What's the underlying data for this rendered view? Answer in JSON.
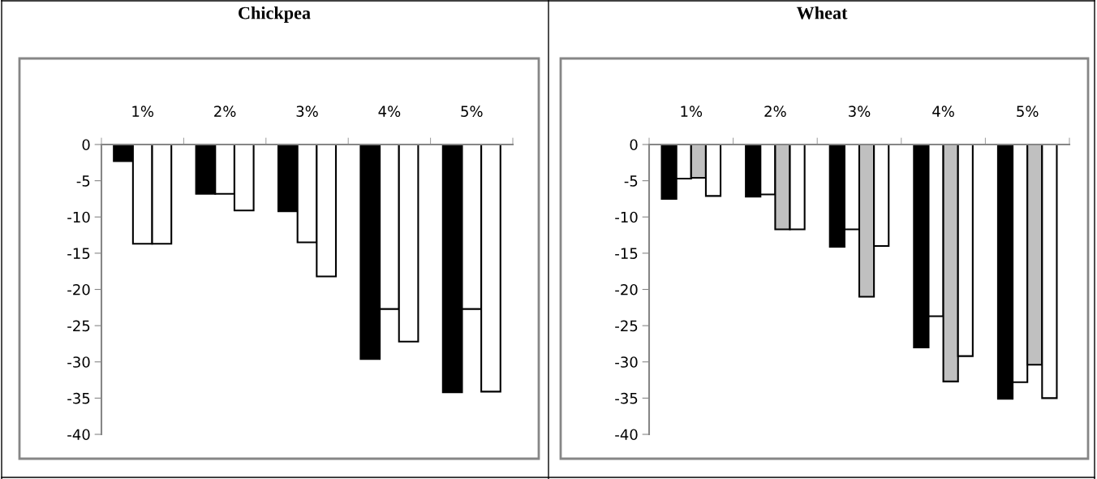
{
  "chart_data": [
    {
      "type": "bar",
      "title": "Chickpea",
      "categories": [
        "1%",
        "2%",
        "3%",
        "4%",
        "5%"
      ],
      "ylim": [
        -40,
        0
      ],
      "yticks": [
        0,
        -5,
        -10,
        -15,
        -20,
        -25,
        -30,
        -35,
        -40
      ],
      "grid": false,
      "legend": false,
      "series": [
        {
          "color": "#000000",
          "values": [
            -2.3,
            -6.8,
            -9.2,
            -29.6,
            -34.2
          ]
        },
        {
          "color": "#ffffff",
          "values": [
            -13.7,
            -6.8,
            -13.5,
            -22.7,
            -22.7
          ]
        },
        {
          "color": "#ffffff",
          "values": [
            -13.7,
            -9.1,
            -18.2,
            -27.2,
            -34.1
          ]
        }
      ]
    },
    {
      "type": "bar",
      "title": "Wheat",
      "categories": [
        "1%",
        "2%",
        "3%",
        "4%",
        "5%"
      ],
      "ylim": [
        -40,
        0
      ],
      "yticks": [
        0,
        -5,
        -10,
        -15,
        -20,
        -25,
        -30,
        -35,
        -40
      ],
      "grid": false,
      "legend": false,
      "series": [
        {
          "color": "#000000",
          "values": [
            -7.5,
            -7.2,
            -14.1,
            -28.0,
            -35.1
          ]
        },
        {
          "color": "#ffffff",
          "values": [
            -4.7,
            -6.9,
            -11.7,
            -23.7,
            -32.8
          ]
        },
        {
          "color": "#c0c0c0",
          "values": [
            -4.6,
            -11.7,
            -21.0,
            -32.7,
            -30.4
          ]
        },
        {
          "color": "#ffffff",
          "values": [
            -7.1,
            -11.7,
            -14.0,
            -29.2,
            -35.0
          ]
        }
      ]
    }
  ]
}
